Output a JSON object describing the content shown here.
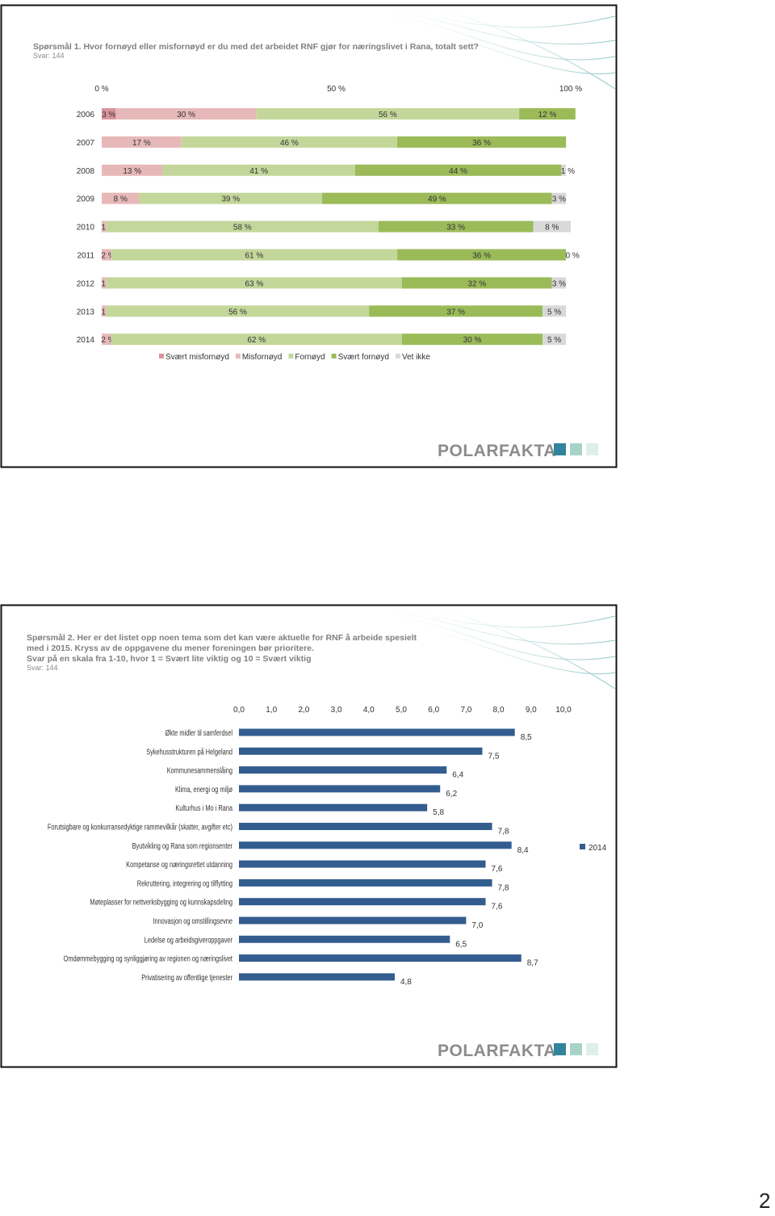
{
  "chart_data": [
    {
      "type": "bar",
      "stacked": true,
      "orientation": "horizontal",
      "title": "Spørsmål 1. Hvor fornøyd eller misfornøyd er du med det arbeidet RNF gjør for næringslivet i Rana, totalt sett?",
      "subtitle": "Svar: 144",
      "categories": [
        "2006",
        "2007",
        "2008",
        "2009",
        "2010",
        "2011",
        "2012",
        "2013",
        "2014"
      ],
      "xlim": [
        0,
        100
      ],
      "xticks": [
        {
          "value": 0,
          "label": "0 %"
        },
        {
          "value": 50,
          "label": "50 %"
        },
        {
          "value": 100,
          "label": "100 %"
        }
      ],
      "series": [
        {
          "name": "Svært misfornøyd",
          "color": "#d9959c",
          "values": [
            3,
            0,
            0,
            0,
            0,
            0,
            0,
            0,
            0
          ],
          "value_labels": [
            "3 %",
            null,
            null,
            null,
            null,
            null,
            null,
            null,
            null
          ]
        },
        {
          "name": "Misfornøyd",
          "color": "#e6b9b8",
          "values": [
            30,
            17,
            13,
            8,
            1,
            2,
            1,
            1,
            2
          ],
          "value_labels": [
            "30 %",
            "17 %",
            "13 %",
            "8 %",
            "1 %",
            "2 %",
            "1 %",
            "1 %",
            "2 %"
          ]
        },
        {
          "name": "Fornøyd",
          "color": "#c4d79b",
          "values": [
            56,
            46,
            41,
            39,
            58,
            61,
            63,
            56,
            62
          ],
          "value_labels": [
            "56 %",
            "46 %",
            "41 %",
            "39 %",
            "58 %",
            "61 %",
            "63 %",
            "56 %",
            "62 %"
          ]
        },
        {
          "name": "Svært fornøyd",
          "color": "#9bbb59",
          "values": [
            12,
            36,
            44,
            49,
            33,
            36,
            32,
            37,
            30
          ],
          "value_labels": [
            "12 %",
            "36 %",
            "44 %",
            "49 %",
            "33 %",
            "36 %",
            "32 %",
            "37 %",
            "30 %"
          ]
        },
        {
          "name": "Vet ikke",
          "color": "#d9d9d9",
          "values": [
            0,
            0,
            1,
            3,
            8,
            0,
            3,
            5,
            5
          ],
          "value_labels": [
            null,
            null,
            "1 %",
            "3 %",
            "8 %",
            "0 %",
            "3 %",
            "5 %",
            "5 %"
          ]
        }
      ]
    },
    {
      "type": "bar",
      "orientation": "horizontal",
      "title": [
        "Spørsmål 2. Her er det listet opp noen tema som det kan være aktuelle for RNF å arbeide spesielt",
        "med i 2015. Kryss av de oppgavene du mener foreningen bør prioritere."
      ],
      "subtitle": "Svar på en skala fra 1-10, hvor 1 = Svært lite viktig og 10 = Svært viktig",
      "note": "Svar: 144",
      "categories": [
        "Økte midler til samferdsel",
        "Sykehusstrukturen på Helgeland",
        "Kommunesammenslåing",
        "Klima, energi og miljø",
        "Kulturhus i Mo i Rana",
        "Forutsigbare og konkurransedyktige rammevilkår (skatter, avgifter etc)",
        "Byutvikling og Rana som regionsenter",
        "Kompetanse og næringsrettet utdanning",
        "Rekruttering, integrering og tilflytting",
        "Møteplasser for nettverksbygging og kunnskapsdeling",
        "Innovasjon og omstillingsevne",
        "Ledelse og arbeidsgiveroppgaver",
        "Omdømmebygging og synliggjøring av regionen og næringslivet",
        "Privatisering av offentlige tjenester"
      ],
      "xlim": [
        0,
        10
      ],
      "xticks": [
        {
          "value": 0,
          "label": "0,0"
        },
        {
          "value": 1,
          "label": "1,0"
        },
        {
          "value": 2,
          "label": "2,0"
        },
        {
          "value": 3,
          "label": "3,0"
        },
        {
          "value": 4,
          "label": "4,0"
        },
        {
          "value": 5,
          "label": "5,0"
        },
        {
          "value": 6,
          "label": "6,0"
        },
        {
          "value": 7,
          "label": "7,0"
        },
        {
          "value": 8,
          "label": "8,0"
        },
        {
          "value": 9,
          "label": "9,0"
        },
        {
          "value": 10,
          "label": "10,0"
        }
      ],
      "series": [
        {
          "name": "2014",
          "color": "#335d8f",
          "values": [
            8.5,
            7.5,
            6.4,
            6.2,
            5.8,
            7.8,
            8.4,
            7.6,
            7.8,
            7.6,
            7.0,
            6.5,
            8.7,
            4.8
          ],
          "value_labels": [
            "8,5",
            "7,5",
            "6,4",
            "6,2",
            "5,8",
            "7,8",
            "8,4",
            "7,6",
            "7,8",
            "7,6",
            "7,0",
            "6,5",
            "8,7",
            "4,8"
          ]
        }
      ]
    }
  ],
  "logo": "POLARFAKTA",
  "page_number": "2"
}
